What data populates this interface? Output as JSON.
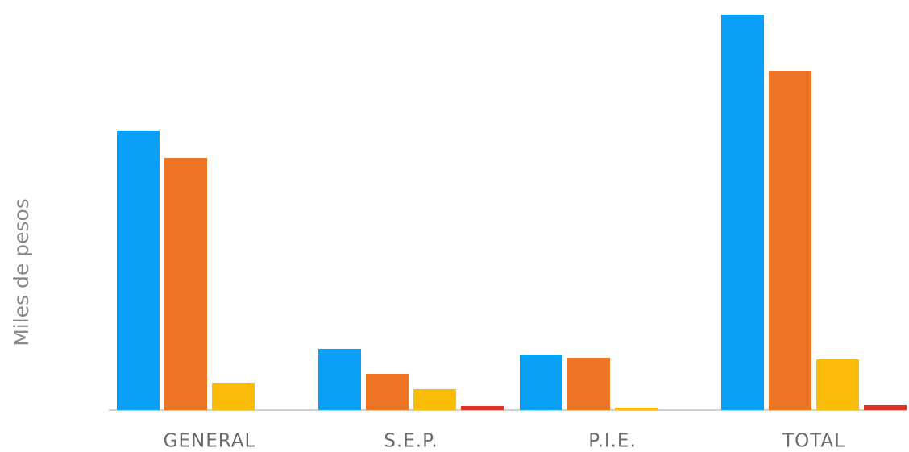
{
  "chart_data": {
    "type": "bar",
    "y_label": "Miles de pesos",
    "categories": [
      "GENERAL",
      "S.E.P.",
      "P.I.E.",
      "TOTAL"
    ],
    "series": [
      {
        "color": "#0aa0f5",
        "values": [
          347,
          76,
          69,
          491
        ]
      },
      {
        "color": "#ec7424",
        "values": [
          313,
          45,
          65,
          421
        ]
      },
      {
        "color": "#fbbb09",
        "values": [
          34,
          26,
          3,
          63
        ]
      },
      {
        "color": "#e0301e",
        "values": [
          0,
          5,
          0,
          6
        ]
      }
    ],
    "ylim": [
      0,
      500
    ],
    "grid": false
  }
}
